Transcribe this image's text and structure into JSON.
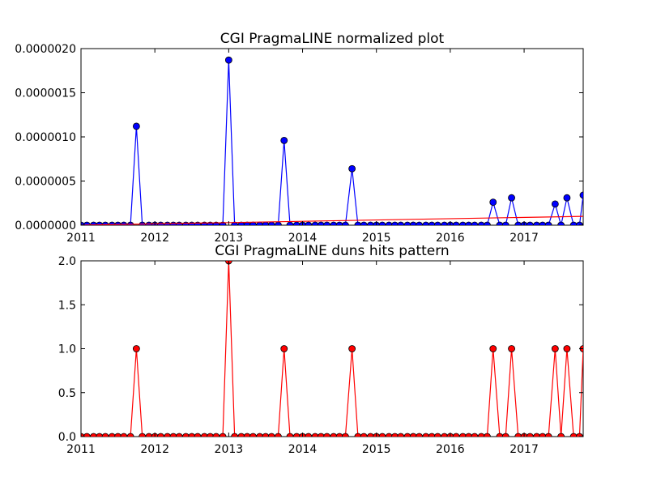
{
  "chart_data": [
    {
      "type": "line",
      "title": "CGI PragmaLINE normalized plot",
      "xlabel": "",
      "ylabel": "",
      "xlim": [
        2011.0,
        2017.8
      ],
      "ylim": [
        0,
        2e-06
      ],
      "x_ticks": [
        2011,
        2012,
        2013,
        2014,
        2015,
        2016,
        2017
      ],
      "x_tick_labels": [
        "2011",
        "2012",
        "2013",
        "2014",
        "2015",
        "2016",
        "2017"
      ],
      "y_ticks": [
        0,
        5e-07,
        1e-06,
        1.5e-06,
        2e-06
      ],
      "y_tick_labels": [
        "0.0000000",
        "0.0000005",
        "0.0000010",
        "0.0000015",
        "0.0000020"
      ],
      "grid": false,
      "series": [
        {
          "color": "#0000ff",
          "marker": "circle",
          "x": [
            2011.0,
            2011.08,
            2011.17,
            2011.25,
            2011.33,
            2011.42,
            2011.5,
            2011.58,
            2011.67,
            2011.75,
            2011.83,
            2011.92,
            2012.0,
            2012.08,
            2012.17,
            2012.25,
            2012.33,
            2012.42,
            2012.5,
            2012.58,
            2012.67,
            2012.75,
            2012.83,
            2012.92,
            2013.0,
            2013.08,
            2013.17,
            2013.25,
            2013.33,
            2013.42,
            2013.5,
            2013.58,
            2013.67,
            2013.75,
            2013.83,
            2013.92,
            2014.0,
            2014.08,
            2014.17,
            2014.25,
            2014.33,
            2014.42,
            2014.5,
            2014.58,
            2014.67,
            2014.75,
            2014.83,
            2014.92,
            2015.0,
            2015.08,
            2015.17,
            2015.25,
            2015.33,
            2015.42,
            2015.5,
            2015.58,
            2015.67,
            2015.75,
            2015.83,
            2015.92,
            2016.0,
            2016.08,
            2016.17,
            2016.25,
            2016.33,
            2016.42,
            2016.5,
            2016.58,
            2016.67,
            2016.75,
            2016.83,
            2016.92,
            2017.0,
            2017.08,
            2017.17,
            2017.25,
            2017.33,
            2017.42,
            2017.5,
            2017.58,
            2017.67,
            2017.75,
            2017.8
          ],
          "y": [
            0,
            0,
            0,
            0,
            0,
            0,
            0,
            0,
            0,
            1.12e-06,
            0,
            0,
            0,
            0,
            0,
            0,
            0,
            0,
            0,
            0,
            0,
            0,
            0,
            0,
            1.87e-06,
            0,
            0,
            0,
            0,
            0,
            0,
            0,
            0,
            9.6e-07,
            0,
            0,
            0,
            0,
            0,
            0,
            0,
            0,
            0,
            0,
            6.4e-07,
            0,
            0,
            0,
            0,
            0,
            0,
            0,
            0,
            0,
            0,
            0,
            0,
            0,
            0,
            0,
            0,
            0,
            0,
            0,
            0,
            0,
            0,
            2.6e-07,
            0,
            0,
            3.1e-07,
            0,
            0,
            0,
            0,
            0,
            0,
            2.4e-07,
            0,
            3.1e-07,
            0,
            0,
            3.4e-07
          ]
        },
        {
          "color": "#ff0000",
          "marker": "none",
          "x": [
            2011.0,
            2017.8
          ],
          "y": [
            0,
            1e-07
          ]
        }
      ]
    },
    {
      "type": "line",
      "title": "CGI PragmaLINE duns hits pattern",
      "xlabel": "",
      "ylabel": "",
      "xlim": [
        2011.0,
        2017.8
      ],
      "ylim": [
        0,
        2.0
      ],
      "x_ticks": [
        2011,
        2012,
        2013,
        2014,
        2015,
        2016,
        2017
      ],
      "x_tick_labels": [
        "2011",
        "2012",
        "2013",
        "2014",
        "2015",
        "2016",
        "2017"
      ],
      "y_ticks": [
        0,
        0.5,
        1.0,
        1.5,
        2.0
      ],
      "y_tick_labels": [
        "0.0",
        "0.5",
        "1.0",
        "1.5",
        "2.0"
      ],
      "grid": false,
      "series": [
        {
          "color": "#ff0000",
          "marker": "circle",
          "x": [
            2011.0,
            2011.08,
            2011.17,
            2011.25,
            2011.33,
            2011.42,
            2011.5,
            2011.58,
            2011.67,
            2011.75,
            2011.83,
            2011.92,
            2012.0,
            2012.08,
            2012.17,
            2012.25,
            2012.33,
            2012.42,
            2012.5,
            2012.58,
            2012.67,
            2012.75,
            2012.83,
            2012.92,
            2013.0,
            2013.08,
            2013.17,
            2013.25,
            2013.33,
            2013.42,
            2013.5,
            2013.58,
            2013.67,
            2013.75,
            2013.83,
            2013.92,
            2014.0,
            2014.08,
            2014.17,
            2014.25,
            2014.33,
            2014.42,
            2014.5,
            2014.58,
            2014.67,
            2014.75,
            2014.83,
            2014.92,
            2015.0,
            2015.08,
            2015.17,
            2015.25,
            2015.33,
            2015.42,
            2015.5,
            2015.58,
            2015.67,
            2015.75,
            2015.83,
            2015.92,
            2016.0,
            2016.08,
            2016.17,
            2016.25,
            2016.33,
            2016.42,
            2016.5,
            2016.58,
            2016.67,
            2016.75,
            2016.83,
            2016.92,
            2017.0,
            2017.08,
            2017.17,
            2017.25,
            2017.33,
            2017.42,
            2017.5,
            2017.58,
            2017.67,
            2017.75,
            2017.8
          ],
          "y": [
            0,
            0,
            0,
            0,
            0,
            0,
            0,
            0,
            0,
            1,
            0,
            0,
            0,
            0,
            0,
            0,
            0,
            0,
            0,
            0,
            0,
            0,
            0,
            0,
            2,
            0,
            0,
            0,
            0,
            0,
            0,
            0,
            0,
            1,
            0,
            0,
            0,
            0,
            0,
            0,
            0,
            0,
            0,
            0,
            1,
            0,
            0,
            0,
            0,
            0,
            0,
            0,
            0,
            0,
            0,
            0,
            0,
            0,
            0,
            0,
            0,
            0,
            0,
            0,
            0,
            0,
            0,
            1,
            0,
            0,
            1,
            0,
            0,
            0,
            0,
            0,
            0,
            1,
            0,
            1,
            0,
            0,
            1
          ]
        }
      ]
    }
  ]
}
